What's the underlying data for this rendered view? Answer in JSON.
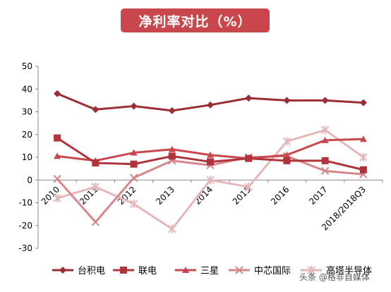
{
  "chart_data": {
    "type": "line",
    "title": "净利率对比（%）",
    "xlabel": "",
    "ylabel": "",
    "categories": [
      "2010",
      "2011",
      "2012",
      "2013",
      "2014",
      "2015",
      "2016",
      "2017",
      "2018/2018Q3"
    ],
    "ylim": [
      -30,
      50
    ],
    "yticks": [
      -30,
      -20,
      -10,
      0,
      10,
      20,
      30,
      40,
      50
    ],
    "grid": false,
    "legend": "bottom",
    "series": [
      {
        "name": "台积电",
        "marker": "diamond",
        "color": "#9b2d33",
        "values": [
          38,
          31,
          32.5,
          30.5,
          33,
          36,
          35,
          35,
          34
        ]
      },
      {
        "name": "联电",
        "marker": "square",
        "color": "#b0343b",
        "values": [
          18.5,
          7.5,
          7,
          10.5,
          8,
          9.5,
          8.5,
          8.5,
          4.5
        ]
      },
      {
        "name": "三星",
        "marker": "triangle",
        "color": "#c8484e",
        "values": [
          10.5,
          8.5,
          12,
          13.5,
          11,
          9.5,
          11,
          17.5,
          18
        ]
      },
      {
        "name": "中芯国际",
        "marker": "x",
        "color": "#d7878a",
        "values": [
          0.5,
          -18.5,
          1,
          8.5,
          6.5,
          10,
          10.5,
          4,
          2.5
        ]
      },
      {
        "name": "高塔半导体",
        "marker": "star",
        "color": "#e6b7b9",
        "values": [
          -8,
          -3,
          -10.5,
          -21.5,
          0,
          -3,
          17,
          22,
          10
        ]
      }
    ]
  },
  "watermark": "头条 @格非自媒体"
}
